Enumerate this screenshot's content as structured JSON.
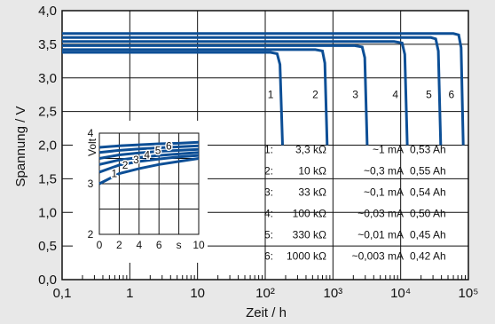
{
  "chart_data": [
    {
      "type": "line",
      "xscale": "log",
      "xlim": [
        0.1,
        100000
      ],
      "ylim": [
        0,
        4
      ],
      "xlabel": "Zeit / h",
      "ylabel": "Spannung / V",
      "yticks": [
        "0,0",
        "0,5",
        "1,0",
        "1,5",
        "2,0",
        "2,5",
        "3,0",
        "3,5",
        "4,0"
      ],
      "xticks": [
        "0,1",
        "1",
        "10",
        "10²",
        "10³",
        "10⁴",
        "10⁵"
      ],
      "grid": true,
      "series": [
        {
          "name": "1",
          "x": [
            0.1,
            120,
            150,
            165,
            180
          ],
          "y": [
            3.38,
            3.38,
            3.36,
            3.2,
            2.0
          ]
        },
        {
          "name": "2",
          "x": [
            0.1,
            550,
            700,
            760,
            820
          ],
          "y": [
            3.42,
            3.42,
            3.4,
            3.22,
            2.0
          ]
        },
        {
          "name": "3",
          "x": [
            0.1,
            2100,
            2700,
            2950,
            3200
          ],
          "y": [
            3.48,
            3.48,
            3.46,
            3.3,
            2.0
          ]
        },
        {
          "name": "4",
          "x": [
            0.1,
            8000,
            10500,
            11500,
            12500
          ],
          "y": [
            3.54,
            3.54,
            3.52,
            3.35,
            2.0
          ]
        },
        {
          "name": "5",
          "x": [
            0.1,
            28000,
            33000,
            36000,
            39000
          ],
          "y": [
            3.6,
            3.6,
            3.58,
            3.4,
            2.0
          ]
        },
        {
          "name": "6",
          "x": [
            0.1,
            60000,
            72000,
            78000,
            84000
          ],
          "y": [
            3.66,
            3.66,
            3.64,
            3.45,
            2.0
          ]
        }
      ],
      "legend": [
        {
          "id": "1:",
          "resistance": "3,3 kΩ",
          "current": "~1 mA",
          "capacity": "0,53 Ah"
        },
        {
          "id": "2:",
          "resistance": "10 kΩ",
          "current": "~0,3 mA",
          "capacity": "0,55 Ah"
        },
        {
          "id": "3:",
          "resistance": "33 kΩ",
          "current": "~0,1 mA",
          "capacity": "0,54 Ah"
        },
        {
          "id": "4:",
          "resistance": "100 kΩ",
          "current": "~0,03 mA",
          "capacity": "0,50 Ah"
        },
        {
          "id": "5:",
          "resistance": "330 kΩ",
          "current": "~0,01 mA",
          "capacity": "0,45 Ah"
        },
        {
          "id": "6:",
          "resistance": "1000 kΩ",
          "current": "~0,003 mA",
          "capacity": "0,42 Ah"
        }
      ],
      "legend_position": "bottom-right",
      "line_color": "#0d4f96"
    },
    {
      "type": "line",
      "inset": true,
      "xlim": [
        0,
        10
      ],
      "ylim": [
        2,
        4
      ],
      "ylabel": "Volt",
      "xunit": "s",
      "xticks": [
        "0",
        "2",
        "4",
        "6",
        "s",
        "10"
      ],
      "yticks": [
        "2",
        "3",
        "4"
      ],
      "series": [
        {
          "name": "1",
          "x": [
            0,
            2,
            4,
            6,
            8,
            10
          ],
          "y": [
            3.0,
            3.2,
            3.3,
            3.38,
            3.44,
            3.5
          ]
        },
        {
          "name": "2",
          "x": [
            0,
            2,
            4,
            6,
            8,
            10
          ],
          "y": [
            3.23,
            3.37,
            3.44,
            3.49,
            3.53,
            3.56
          ]
        },
        {
          "name": "3",
          "x": [
            0,
            2,
            4,
            6,
            8,
            10
          ],
          "y": [
            3.38,
            3.47,
            3.52,
            3.56,
            3.59,
            3.62
          ]
        },
        {
          "name": "4",
          "x": [
            0,
            2,
            4,
            6,
            8,
            10
          ],
          "y": [
            3.5,
            3.57,
            3.61,
            3.64,
            3.66,
            3.68
          ]
        },
        {
          "name": "5",
          "x": [
            0,
            2,
            4,
            6,
            8,
            10
          ],
          "y": [
            3.62,
            3.66,
            3.69,
            3.71,
            3.73,
            3.75
          ]
        },
        {
          "name": "6",
          "x": [
            0,
            2,
            4,
            6,
            8,
            10
          ],
          "y": [
            3.72,
            3.75,
            3.77,
            3.79,
            3.8,
            3.82
          ]
        }
      ]
    }
  ]
}
